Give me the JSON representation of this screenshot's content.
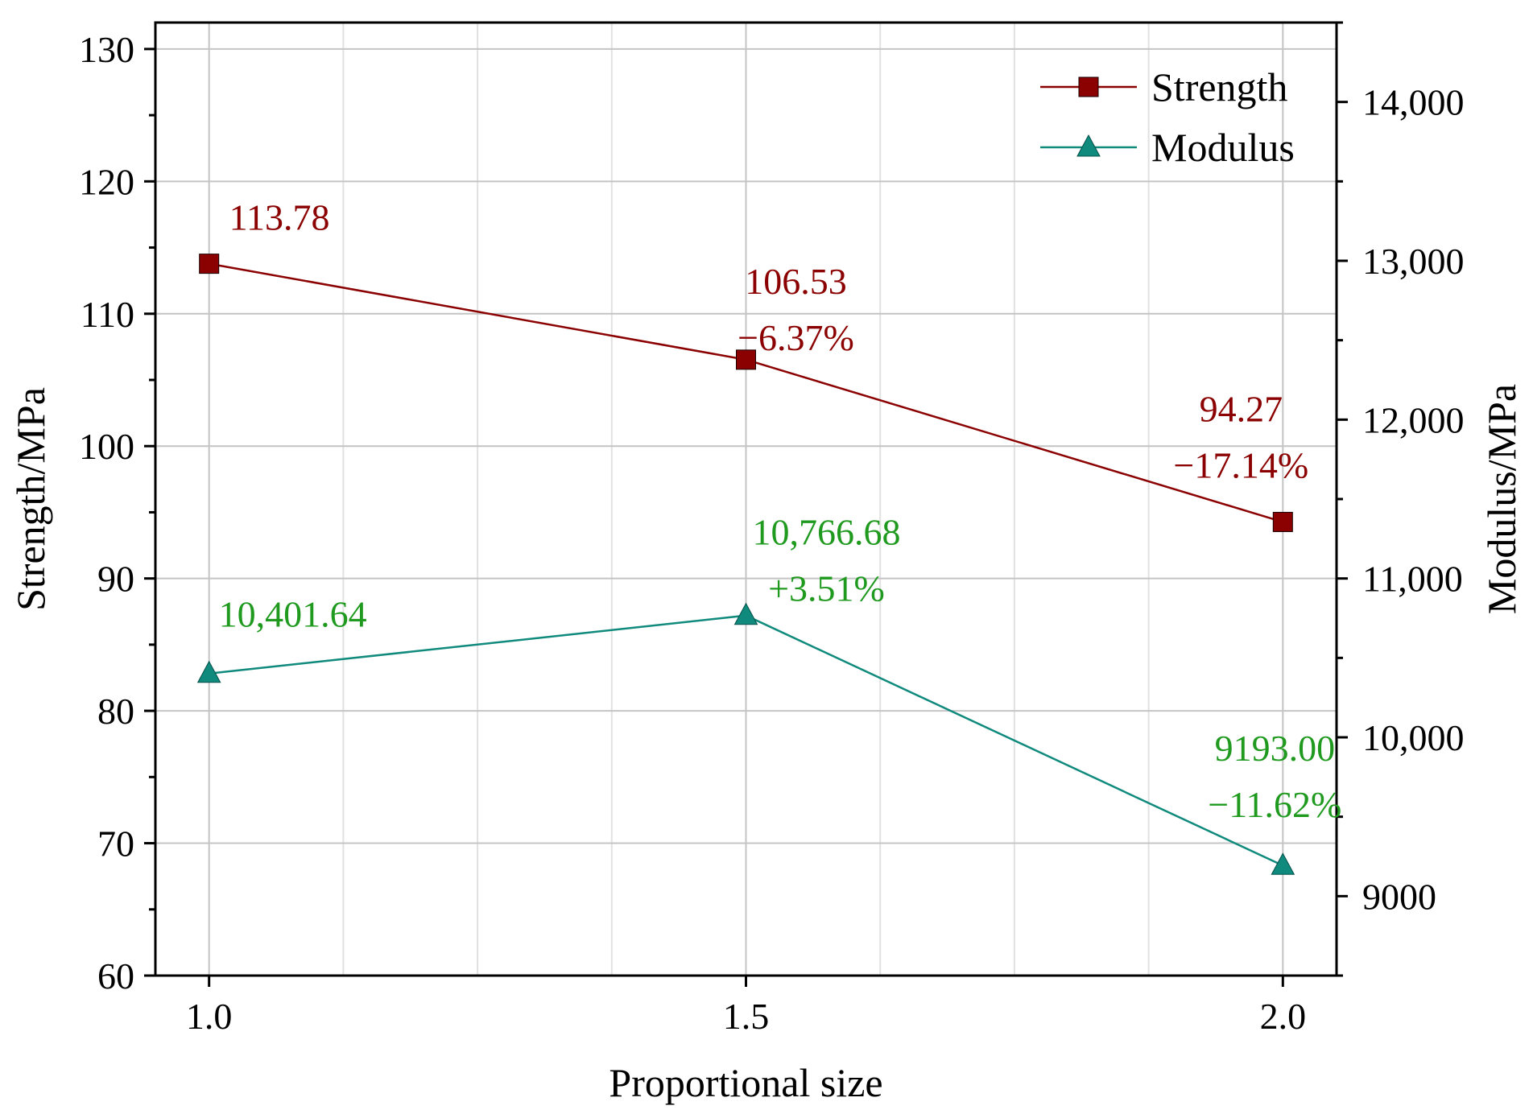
{
  "chart_data": {
    "type": "line",
    "title": "",
    "xlabel": "Proportional size",
    "ylabel_left": "Strength/MPa",
    "ylabel_right": "Modulus/MPa",
    "x": [
      1.0,
      1.5,
      2.0
    ],
    "x_ticks": [
      "1.0",
      "1.5",
      "2.0"
    ],
    "xlim": [
      0.95,
      2.05
    ],
    "ylim_left": [
      60,
      132
    ],
    "yticks_left": [
      "60",
      "70",
      "80",
      "90",
      "100",
      "110",
      "120",
      "130"
    ],
    "ylim_right": [
      8500,
      14500
    ],
    "yticks_right": [
      "9000",
      "10,000",
      "11,000",
      "12,000",
      "13,000",
      "14,000"
    ],
    "grid": true,
    "legend_position": "top-right",
    "series": [
      {
        "name": "Strength",
        "axis": "left",
        "marker": "square",
        "color": "#8b0000",
        "values": [
          113.78,
          106.53,
          94.27
        ],
        "labels": [
          [
            "113.78"
          ],
          [
            "106.53",
            "−6.37%"
          ],
          [
            "94.27",
            "−17.14%"
          ]
        ]
      },
      {
        "name": "Modulus",
        "axis": "right",
        "marker": "triangle",
        "color": "#0f8a7c",
        "label_color": "#1f9a1f",
        "values": [
          10401.64,
          10766.68,
          9193.0
        ],
        "labels": [
          [
            "10,401.64"
          ],
          [
            "10,766.68",
            "+3.51%"
          ],
          [
            "9193.00",
            "−11.62%"
          ]
        ]
      }
    ]
  }
}
